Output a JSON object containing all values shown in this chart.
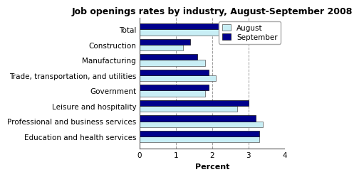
{
  "title": "Job openings rates by industry, August-September 2008",
  "categories": [
    "Total",
    "Construction",
    "Manufacturing",
    "Trade, transportation, and utilities",
    "Government",
    "Leisure and hospitality",
    "Professional and business services",
    "Education and health services"
  ],
  "august_values": [
    2.4,
    1.2,
    1.8,
    2.1,
    1.8,
    2.7,
    3.4,
    3.3
  ],
  "september_values": [
    2.3,
    1.4,
    1.6,
    1.9,
    1.9,
    3.0,
    3.2,
    3.3
  ],
  "august_color": "#c8eef5",
  "september_color": "#00008b",
  "xlabel": "Percent",
  "xlim": [
    0,
    4
  ],
  "xticks": [
    0,
    1,
    2,
    3,
    4
  ],
  "legend_labels": [
    "August",
    "September"
  ],
  "background_color": "#ffffff",
  "bar_height": 0.38,
  "grid_color": "#999999",
  "title_fontsize": 9,
  "axis_fontsize": 8,
  "tick_fontsize": 7.5,
  "legend_fontsize": 7.5
}
